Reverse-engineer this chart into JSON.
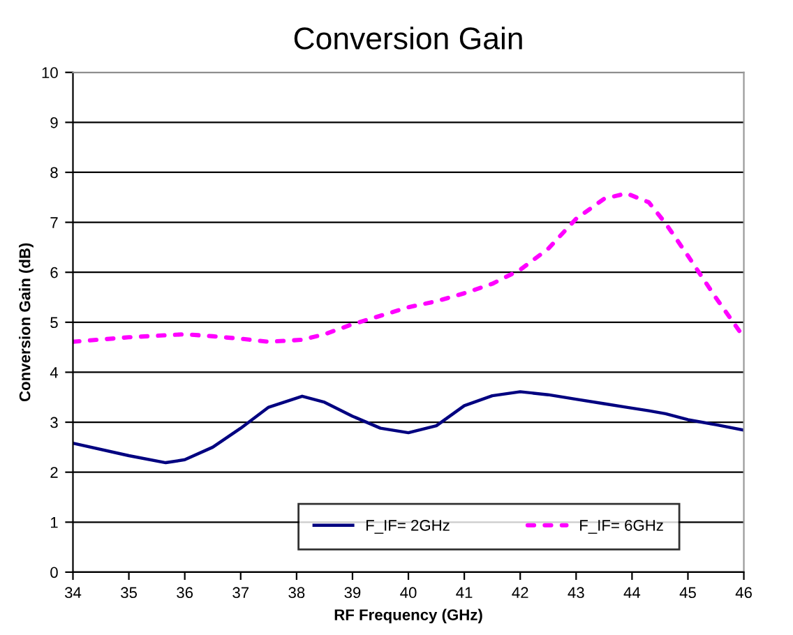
{
  "chart_data": {
    "type": "line",
    "title": "Conversion Gain",
    "xlabel": "RF Frequency (GHz)",
    "ylabel": "Conversion Gain (dB)",
    "x": [
      34,
      35,
      35.66,
      36,
      36.5,
      37,
      37.5,
      38.1,
      38.5,
      39,
      39.5,
      40,
      40.5,
      41,
      41.5,
      42,
      42.5,
      43,
      43.5,
      43.9,
      44.3,
      44.6,
      45,
      45.5,
      46
    ],
    "series": [
      {
        "name": "F_IF= 2GHz",
        "color": "#000080",
        "line_style": "solid",
        "values": [
          2.58,
          2.33,
          2.19,
          2.25,
          2.5,
          2.88,
          3.3,
          3.52,
          3.4,
          3.12,
          2.88,
          2.79,
          2.93,
          3.33,
          3.53,
          3.61,
          3.55,
          3.46,
          3.37,
          3.3,
          3.23,
          3.17,
          3.05,
          2.95,
          2.84
        ]
      },
      {
        "name": "F_IF= 6GHz",
        "color": "#ff00ff",
        "line_style": "dotted",
        "values": [
          4.61,
          4.7,
          4.74,
          4.76,
          4.72,
          4.67,
          4.61,
          4.65,
          4.76,
          4.96,
          5.13,
          5.3,
          5.42,
          5.58,
          5.77,
          6.05,
          6.47,
          7.07,
          7.47,
          7.58,
          7.4,
          6.98,
          6.33,
          5.49,
          4.7
        ]
      }
    ],
    "xlim": [
      34,
      46
    ],
    "xticks": [
      34,
      35,
      36,
      37,
      38,
      39,
      40,
      41,
      42,
      43,
      44,
      45,
      46
    ],
    "ylim": [
      0,
      10
    ],
    "yticks": [
      0,
      1,
      2,
      3,
      4,
      5,
      6,
      7,
      8,
      9,
      10
    ],
    "grid": "y",
    "legend": "bottom",
    "marker": "none"
  }
}
